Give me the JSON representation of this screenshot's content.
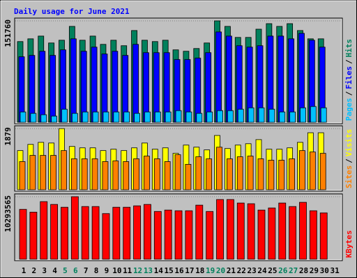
{
  "chart_data": [
    {
      "type": "bar",
      "title": "Daily usage for June 2021",
      "separator": "/",
      "ylim": [
        0,
        151760
      ],
      "yticks": [
        151760
      ],
      "series": [
        {
          "name": "Hits",
          "color": "#00805c",
          "values": [
            120800,
            124900,
            129000,
            118700,
            122800,
            143500,
            122800,
            129000,
            116600,
            122800,
            114600,
            137300,
            122800,
            120800,
            122800,
            108400,
            106300,
            110400,
            118700,
            151760,
            143500,
            127000,
            127000,
            139300,
            147600,
            143500,
            147600,
            137300,
            124900,
            124900,
            null
          ]
        },
        {
          "name": "Files",
          "color": "#0000ff",
          "values": [
            98040,
            100100,
            106300,
            100100,
            108400,
            124900,
            106300,
            112500,
            102200,
            106300,
            100100,
            116600,
            104200,
            104200,
            104200,
            93900,
            93900,
            96000,
            104200,
            135200,
            129000,
            114600,
            112500,
            114600,
            129000,
            129000,
            124900,
            133100,
            122800,
            112500,
            null
          ]
        },
        {
          "name": "Pages",
          "color": "#00c0ff",
          "values": [
            15500,
            13400,
            11400,
            9300,
            19600,
            13400,
            15500,
            15500,
            15500,
            15500,
            15500,
            13400,
            15500,
            15500,
            15500,
            17500,
            15500,
            13400,
            15500,
            17500,
            17500,
            19600,
            21700,
            21700,
            19600,
            15500,
            15500,
            21700,
            23700,
            21700,
            null
          ]
        }
      ]
    },
    {
      "type": "bar",
      "separator": "/",
      "ylim": [
        0,
        1879
      ],
      "yticks": [
        1879
      ],
      "series": [
        {
          "name": "Visits",
          "color": "#ffff00",
          "values": [
            1203,
            1393,
            1456,
            1435,
            1879,
            1330,
            1287,
            1287,
            1203,
            1245,
            1203,
            1287,
            1435,
            1245,
            1287,
            1118,
            1372,
            1308,
            1224,
            1667,
            1266,
            1372,
            1414,
            1540,
            1245,
            1245,
            1287,
            1456,
            1751,
            1751,
            null
          ]
        },
        {
          "name": "Sites",
          "color": "#ff8000",
          "values": [
            865,
            1055,
            1055,
            1055,
            1203,
            950,
            950,
            950,
            865,
            886,
            865,
            950,
            1034,
            950,
            865,
            1076,
            781,
            1013,
            950,
            1308,
            950,
            1013,
            1034,
            950,
            907,
            907,
            950,
            1203,
            1160,
            1118,
            null
          ]
        }
      ]
    },
    {
      "type": "bar",
      "ylim": [
        0,
        10293565
      ],
      "yticks": [
        10293565
      ],
      "categories": [
        "1",
        "2",
        "3",
        "4",
        "5",
        "6",
        "7",
        "8",
        "9",
        "10",
        "11",
        "12",
        "13",
        "14",
        "15",
        "16",
        "17",
        "18",
        "19",
        "20",
        "21",
        "22",
        "23",
        "24",
        "25",
        "26",
        "27",
        "28",
        "29",
        "30",
        "31"
      ],
      "category_colors": [
        "#000000",
        "#000000",
        "#000000",
        "#000000",
        "#00805c",
        "#00805c",
        "#000000",
        "#000000",
        "#000000",
        "#000000",
        "#000000",
        "#00805c",
        "#00805c",
        "#000000",
        "#000000",
        "#000000",
        "#000000",
        "#000000",
        "#00805c",
        "#00805c",
        "#000000",
        "#000000",
        "#000000",
        "#000000",
        "#000000",
        "#00805c",
        "#00805c",
        "#000000",
        "#000000",
        "#000000",
        "#000000"
      ],
      "series": [
        {
          "name": "KBytes",
          "color": "#ff0000",
          "values": [
            8211700,
            7749100,
            9484000,
            9021300,
            8558700,
            10293565,
            8674400,
            8674400,
            7517800,
            8558700,
            8558700,
            8790000,
            9021300,
            7864700,
            8096100,
            7980400,
            7980400,
            8905700,
            7864700,
            9830900,
            9830900,
            9252600,
            9137000,
            8096100,
            8443000,
            9252600,
            8674400,
            9368300,
            7980400,
            7633400,
            null
          ]
        }
      ]
    }
  ]
}
